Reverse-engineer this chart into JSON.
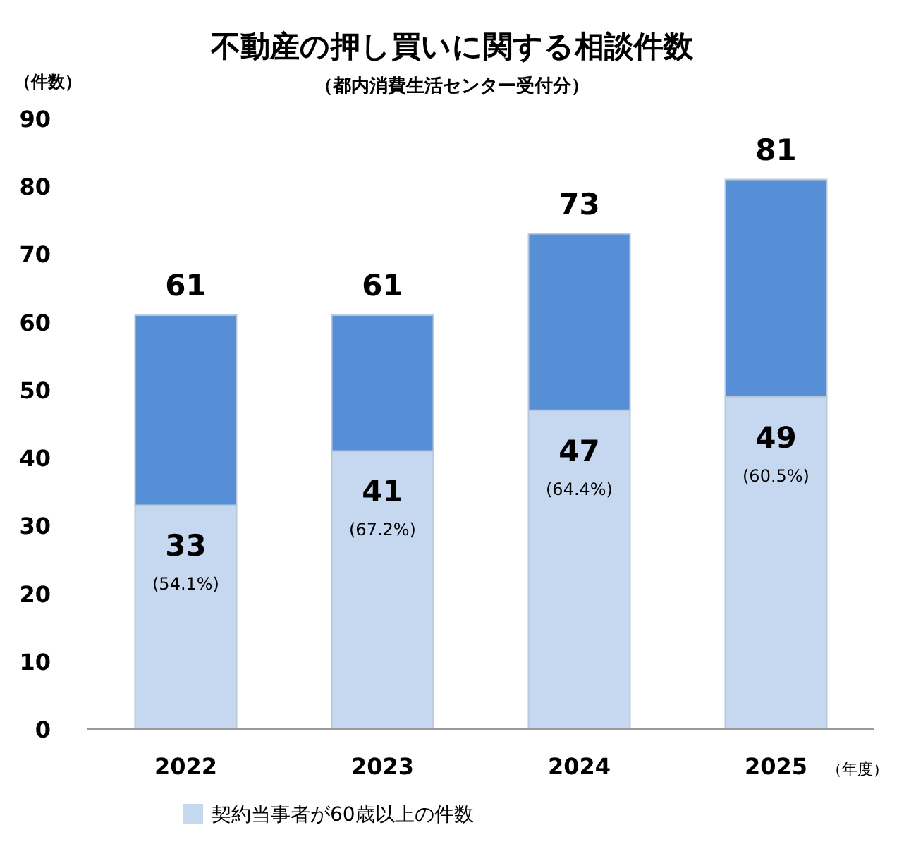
{
  "chart_data": {
    "type": "bar",
    "stacked": true,
    "title": "不動産の押し買いに関する相談件数",
    "subtitle": "（都内消費生活センター受付分）",
    "ylabel": "（件数）",
    "xlabel": "（年度）",
    "categories": [
      "2022",
      "2023",
      "2024",
      "2025"
    ],
    "series": [
      {
        "name": "契約当事者が60歳以上の件数",
        "color": "#c6d8ef",
        "values": [
          33,
          41,
          47,
          49
        ],
        "value_labels": [
          "33",
          "41",
          "47",
          "49"
        ]
      },
      {
        "color": "#568fd6",
        "values": [
          28,
          20,
          26,
          32
        ]
      }
    ],
    "totals": [
      "61",
      "61",
      "73",
      "81"
    ],
    "annotations": [
      "(54.1%)",
      "(67.2%)",
      "(64.4%)",
      "(60.5%)"
    ],
    "ylim": [
      0,
      90
    ],
    "yticks": [
      0,
      10,
      20,
      30,
      40,
      50,
      60,
      70,
      80,
      90
    ],
    "grid": false,
    "legend": "bottom"
  }
}
